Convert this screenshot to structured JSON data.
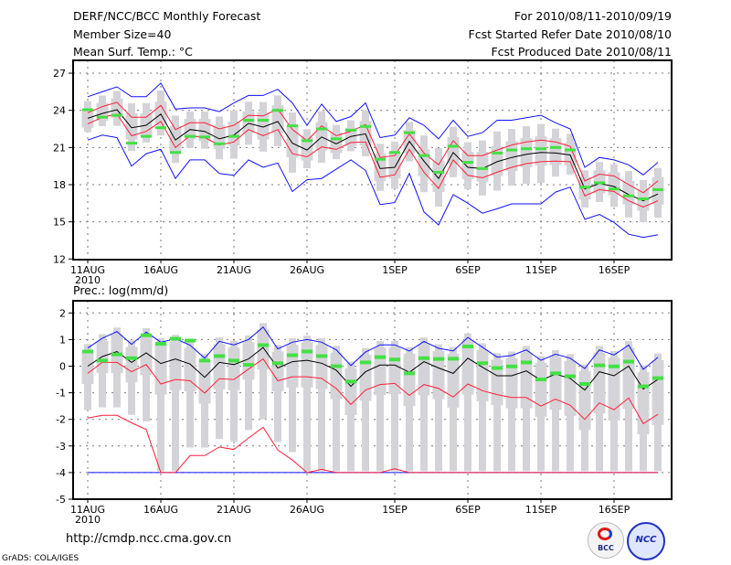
{
  "header": {
    "title": "DERF/NCC/BCC Monthly Forecast",
    "member_size": "Member Size=40",
    "variable": "Mean Surf. Temp.: °C",
    "period": "For 2010/08/11-2010/09/19",
    "started": "Fcst Started Refer Date 2010/08/10",
    "produced": "Fcst Produced Date 2010/08/11"
  },
  "footer": {
    "url": "http://cmdp.ncc.cma.gov.cn",
    "credit": "GrADS: COLA/IGES",
    "logo_bcc": "BCC",
    "logo_ncc": "NCC"
  },
  "colors": {
    "mean": "#000000",
    "spread": "#ff1f3a",
    "extreme": "#1010ff",
    "obs": "#44e044",
    "bar": "#d4d4d8"
  },
  "chart_data": [
    {
      "type": "line",
      "title": "Mean Surf. Temp.: °C",
      "ylim": [
        12,
        27
      ],
      "yticks": [
        12,
        15,
        18,
        21,
        24,
        27
      ],
      "grid": true,
      "x_ticks": [
        {
          "i": 0,
          "label": "11AUG",
          "sub": "2010"
        },
        {
          "i": 5,
          "label": "16AUG"
        },
        {
          "i": 10,
          "label": "21AUG"
        },
        {
          "i": 15,
          "label": "26AUG"
        },
        {
          "i": 21,
          "label": "1SEP"
        },
        {
          "i": 26,
          "label": "6SEP"
        },
        {
          "i": 31,
          "label": "11SEP"
        },
        {
          "i": 36,
          "label": "16SEP"
        }
      ],
      "days": 40,
      "series": [
        {
          "name": "max",
          "color_key": "extreme",
          "values": [
            25.1,
            25.5,
            25.9,
            25.1,
            25.1,
            26.2,
            24.1,
            24.2,
            24.2,
            23.9,
            24.6,
            25.2,
            25.2,
            25.7,
            24.6,
            22.8,
            24.5,
            23.1,
            23.5,
            24.6,
            21.8,
            22.0,
            23.4,
            22.8,
            21.7,
            23.2,
            21.9,
            22.2,
            23.2,
            23.2,
            23.4,
            23.6,
            23.0,
            22.5,
            19.4,
            20.2,
            20.0,
            19.6,
            18.8,
            19.8
          ]
        },
        {
          "name": "upper",
          "color_key": "spread",
          "values": [
            23.8,
            24.3,
            24.65,
            23.45,
            23.45,
            24.4,
            22.45,
            23.0,
            23.0,
            22.5,
            22.8,
            23.6,
            23.55,
            24.1,
            22.45,
            21.55,
            22.75,
            21.95,
            22.3,
            22.85,
            20.2,
            20.35,
            22.1,
            20.55,
            19.6,
            21.55,
            20.35,
            20.35,
            20.8,
            21.2,
            21.45,
            21.6,
            21.45,
            21.1,
            18.3,
            18.85,
            18.7,
            18.0,
            17.35,
            18.3
          ]
        },
        {
          "name": "mean",
          "color_key": "mean",
          "values": [
            23.36,
            23.75,
            24.05,
            22.6,
            22.8,
            23.7,
            21.6,
            22.45,
            22.3,
            21.7,
            22.0,
            22.95,
            22.65,
            23.1,
            21.35,
            20.8,
            21.85,
            21.3,
            21.9,
            22.1,
            19.3,
            19.4,
            21.5,
            19.9,
            18.5,
            20.6,
            19.4,
            19.3,
            19.85,
            20.2,
            20.45,
            20.6,
            20.55,
            20.4,
            17.65,
            18.1,
            17.85,
            17.2,
            16.7,
            17.25
          ]
        },
        {
          "name": "lower",
          "color_key": "spread",
          "values": [
            22.9,
            23.45,
            23.7,
            21.95,
            22.3,
            23.1,
            21.0,
            21.95,
            21.8,
            21.2,
            21.45,
            22.45,
            21.95,
            22.45,
            20.5,
            20.25,
            21.05,
            20.85,
            21.4,
            21.45,
            18.6,
            18.8,
            20.85,
            19.0,
            17.7,
            20.0,
            18.75,
            18.55,
            19.0,
            19.4,
            19.7,
            19.85,
            19.9,
            19.85,
            17.1,
            17.6,
            17.45,
            16.7,
            16.2,
            16.7
          ]
        },
        {
          "name": "min",
          "color_key": "extreme",
          "values": [
            21.6,
            22.0,
            21.8,
            19.5,
            20.5,
            20.85,
            18.5,
            20.0,
            20.0,
            18.9,
            18.75,
            20.0,
            19.4,
            19.75,
            17.45,
            18.4,
            18.5,
            19.25,
            20.0,
            19.15,
            16.4,
            16.55,
            18.9,
            15.8,
            14.75,
            17.2,
            16.5,
            15.7,
            16.05,
            16.45,
            16.45,
            16.45,
            17.4,
            17.8,
            15.2,
            15.6,
            14.95,
            14.0,
            13.75,
            13.95
          ]
        },
        {
          "name": "observed",
          "color_key": "obs",
          "values": [
            24.05,
            23.45,
            23.6,
            21.35,
            21.9,
            22.6,
            20.6,
            21.9,
            21.85,
            21.3,
            21.9,
            23.2,
            23.2,
            24.0,
            22.75,
            21.55,
            22.5,
            21.7,
            22.4,
            22.7,
            20.05,
            20.6,
            22.2,
            20.35,
            19.0,
            21.1,
            19.8,
            19.3,
            20.55,
            20.8,
            20.9,
            20.9,
            21.0,
            20.8,
            17.8,
            18.15,
            17.65,
            17.1,
            16.85,
            17.6
          ]
        }
      ]
    },
    {
      "type": "line",
      "title": "Prec.: log(mm/d)",
      "ylim": [
        -5,
        2
      ],
      "yticks": [
        -5,
        -4,
        -3,
        -2,
        -1,
        0,
        1,
        2
      ],
      "grid": true,
      "x_ticks": [
        {
          "i": 0,
          "label": "11AUG",
          "sub": "2010"
        },
        {
          "i": 5,
          "label": "16AUG"
        },
        {
          "i": 10,
          "label": "21AUG"
        },
        {
          "i": 15,
          "label": "26AUG"
        },
        {
          "i": 21,
          "label": "1SEP"
        },
        {
          "i": 26,
          "label": "6SEP"
        },
        {
          "i": 31,
          "label": "11SEP"
        },
        {
          "i": 36,
          "label": "16SEP"
        }
      ],
      "days": 40,
      "series": [
        {
          "name": "max",
          "color_key": "extreme",
          "values": [
            0.68,
            1.05,
            1.3,
            0.82,
            1.28,
            0.9,
            1.03,
            0.79,
            0.3,
            0.93,
            0.8,
            1.0,
            1.47,
            0.65,
            0.9,
            1.0,
            0.9,
            0.61,
            0.02,
            0.53,
            0.8,
            0.8,
            0.57,
            0.93,
            0.67,
            0.57,
            1.08,
            0.71,
            0.34,
            0.4,
            0.61,
            0.22,
            0.45,
            0.3,
            -0.09,
            0.61,
            0.42,
            0.79,
            -0.12,
            0.33
          ]
        },
        {
          "name": "mean",
          "color_key": "mean",
          "values": [
            0.0,
            0.36,
            0.55,
            0.14,
            0.5,
            0.1,
            0.27,
            0.08,
            -0.42,
            0.14,
            0.06,
            0.27,
            0.7,
            -0.07,
            0.17,
            0.22,
            0.11,
            -0.15,
            -0.76,
            -0.21,
            0.04,
            0.04,
            -0.23,
            0.17,
            -0.07,
            -0.27,
            0.3,
            -0.04,
            -0.36,
            -0.36,
            -0.18,
            -0.53,
            -0.3,
            -0.46,
            -0.9,
            -0.21,
            -0.36,
            0.0,
            -0.86,
            -0.5
          ]
        },
        {
          "name": "upper",
          "color_key": "spread",
          "values": [
            -0.27,
            0.14,
            0.14,
            -0.21,
            0.06,
            -0.67,
            -0.5,
            -0.55,
            -1.01,
            -0.47,
            -0.5,
            -0.11,
            0.27,
            -0.55,
            -0.4,
            -0.4,
            -0.46,
            -0.84,
            -1.44,
            -0.9,
            -0.69,
            -0.65,
            -1.1,
            -0.69,
            -0.84,
            -1.16,
            -0.67,
            -0.92,
            -1.07,
            -1.18,
            -1.18,
            -1.5,
            -1.24,
            -1.47,
            -2.0,
            -1.38,
            -1.64,
            -1.2,
            -2.16,
            -1.81
          ]
        },
        {
          "name": "lower",
          "color_key": "spread",
          "values": [
            -1.95,
            -1.85,
            -1.85,
            -2.13,
            -2.38,
            -4,
            -4,
            -3.36,
            -3.36,
            -3.04,
            -3.13,
            -2.7,
            -2.3,
            -3.15,
            -3.53,
            -4,
            -3.88,
            -4,
            -4,
            -4,
            -4,
            -3.86,
            -4,
            -4,
            -4,
            -4,
            -4,
            -4,
            -4,
            -4,
            -4,
            -4,
            -4,
            -4,
            -4,
            -4,
            -4,
            -4,
            -4,
            -4
          ]
        },
        {
          "name": "min",
          "color_key": "extreme",
          "values": [
            -4,
            -4,
            -4,
            -4,
            -4,
            -4,
            -4,
            -4,
            -4,
            -4,
            -4,
            -4,
            -4,
            -4,
            -4,
            -4,
            -4,
            -4,
            -4,
            -4,
            -4,
            -4,
            -4,
            -4,
            -4,
            -4,
            -4,
            -4,
            -4,
            -4,
            -4,
            -4,
            -4,
            -4,
            -4,
            -4,
            -4,
            -4,
            -4,
            -4
          ]
        },
        {
          "name": "observed",
          "color_key": "obs",
          "values": [
            0.55,
            0.21,
            0.44,
            0.3,
            1.16,
            0.84,
            1.03,
            0.96,
            0.21,
            0.38,
            0.21,
            0.05,
            0.79,
            0.11,
            0.41,
            0.55,
            0.38,
            0.0,
            -0.58,
            0.14,
            0.34,
            0.25,
            -0.27,
            0.3,
            0.27,
            0.28,
            0.74,
            0.11,
            -0.07,
            -0.01,
            0.14,
            -0.5,
            -0.27,
            -0.38,
            -0.67,
            0.03,
            -0.01,
            0.17,
            -0.76,
            -0.45
          ]
        }
      ]
    }
  ]
}
